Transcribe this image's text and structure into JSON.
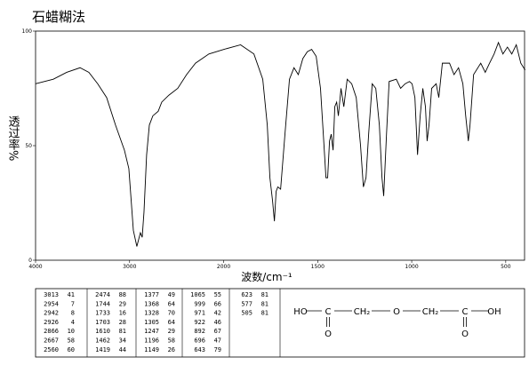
{
  "chart_data": {
    "type": "line",
    "title": "石蜡糊法",
    "xlabel": "波数/cm⁻¹",
    "ylabel": "透过率%",
    "xlim": [
      4000,
      400
    ],
    "xbreak": 2000,
    "xticks": [
      4000,
      3000,
      2000,
      1500,
      1000,
      500
    ],
    "ylim": [
      0,
      100
    ],
    "yticks": [
      0,
      50,
      100
    ],
    "color": "#000000",
    "x": [
      4000,
      3811,
      3669,
      3527,
      3433,
      3339,
      3244,
      3150,
      3055,
      3008,
      2960,
      2923,
      2904,
      2885,
      2866,
      2847,
      2819,
      2790,
      2753,
      2696,
      2658,
      2583,
      2488,
      2394,
      2299,
      2157,
      2000,
      1910,
      1839,
      1792,
      1768,
      1754,
      1740,
      1730,
      1721,
      1712,
      1697,
      1674,
      1650,
      1626,
      1603,
      1579,
      1555,
      1532,
      1508,
      1485,
      1470,
      1456,
      1447,
      1437,
      1428,
      1418,
      1409,
      1399,
      1390,
      1376,
      1361,
      1343,
      1319,
      1295,
      1272,
      1257,
      1243,
      1229,
      1210,
      1191,
      1172,
      1158,
      1149,
      1134,
      1120,
      1082,
      1059,
      1035,
      1012,
      998,
      983,
      969,
      955,
      941,
      927,
      918,
      908,
      894,
      870,
      856,
      837,
      799,
      775,
      751,
      728,
      713,
      699,
      690,
      671,
      633,
      609,
      586,
      562,
      539,
      515,
      491,
      468,
      444,
      420,
      397
    ],
    "values": [
      77,
      79,
      82,
      84,
      82,
      77,
      71,
      59,
      48,
      40,
      13,
      6,
      9,
      12,
      10,
      21,
      46,
      59,
      63,
      65,
      69,
      72,
      75,
      81,
      86,
      90,
      92,
      94,
      90,
      79,
      59,
      36,
      26,
      17,
      30,
      32,
      31,
      55,
      79,
      84,
      81,
      88,
      91,
      92,
      89,
      75,
      55,
      36,
      36,
      52,
      55,
      48,
      67,
      69,
      63,
      75,
      67,
      79,
      77,
      71,
      50,
      32,
      36,
      55,
      77,
      75,
      59,
      36,
      28,
      55,
      78,
      79,
      75,
      77,
      78,
      77,
      71,
      46,
      63,
      75,
      67,
      52,
      59,
      75,
      77,
      71,
      86,
      86,
      81,
      84,
      77,
      63,
      52,
      59,
      81,
      86,
      82,
      86,
      90,
      95,
      90,
      93,
      90,
      94,
      86,
      83
    ]
  },
  "peak_table": {
    "columns": [
      [
        [
          3013,
          41
        ],
        [
          2954,
          7
        ],
        [
          2942,
          8
        ],
        [
          2926,
          4
        ],
        [
          2866,
          10
        ],
        [
          2667,
          58
        ],
        [
          2560,
          60
        ]
      ],
      [
        [
          2474,
          88
        ],
        [
          1744,
          29
        ],
        [
          1733,
          16
        ],
        [
          1703,
          28
        ],
        [
          1610,
          81
        ],
        [
          1462,
          34
        ],
        [
          1419,
          44
        ]
      ],
      [
        [
          1377,
          49
        ],
        [
          1368,
          64
        ],
        [
          1328,
          70
        ],
        [
          1305,
          64
        ],
        [
          1247,
          29
        ],
        [
          1196,
          58
        ],
        [
          1149,
          26
        ]
      ],
      [
        [
          1065,
          55
        ],
        [
          999,
          66
        ],
        [
          971,
          42
        ],
        [
          922,
          46
        ],
        [
          892,
          67
        ],
        [
          696,
          47
        ],
        [
          643,
          79
        ]
      ],
      [
        [
          623,
          81
        ],
        [
          577,
          81
        ],
        [
          505,
          81
        ]
      ]
    ]
  },
  "structure": {
    "chain": [
      "HO",
      "C",
      "CH₂",
      "O",
      "CH₂",
      "C",
      "OH"
    ],
    "carbonyl": [
      "O",
      "O"
    ]
  }
}
